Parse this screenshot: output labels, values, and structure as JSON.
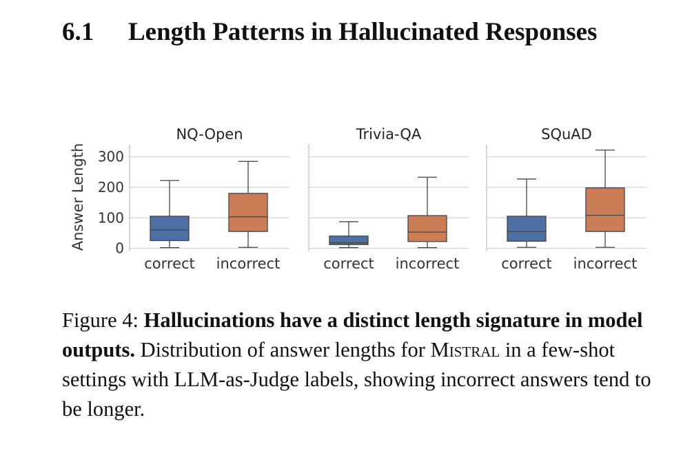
{
  "section": {
    "number": "6.1",
    "title": "Length Patterns in Hallucinated Responses"
  },
  "chart_data": {
    "type": "boxplot",
    "ylabel": "Answer Length",
    "ylim": [
      -10,
      340
    ],
    "yticks": [
      0,
      100,
      200,
      300
    ],
    "grid": true,
    "colors": {
      "correct": "#4c6fa6",
      "incorrect": "#cc7d56"
    },
    "panels": [
      {
        "title": "NQ-Open",
        "boxes": [
          {
            "category": "correct",
            "whisker_low": 2,
            "q1": 25,
            "median": 60,
            "q3": 105,
            "whisker_high": 222
          },
          {
            "category": "incorrect",
            "whisker_low": 3,
            "q1": 55,
            "median": 103,
            "q3": 180,
            "whisker_high": 285
          }
        ]
      },
      {
        "title": "Trivia-QA",
        "boxes": [
          {
            "category": "correct",
            "whisker_low": 2,
            "q1": 12,
            "median": 18,
            "q3": 40,
            "whisker_high": 87
          },
          {
            "category": "incorrect",
            "whisker_low": 2,
            "q1": 22,
            "median": 53,
            "q3": 107,
            "whisker_high": 233
          }
        ]
      },
      {
        "title": "SQuAD",
        "boxes": [
          {
            "category": "correct",
            "whisker_low": 3,
            "q1": 23,
            "median": 55,
            "q3": 105,
            "whisker_high": 227
          },
          {
            "category": "incorrect",
            "whisker_low": 3,
            "q1": 55,
            "median": 108,
            "q3": 198,
            "whisker_high": 322
          }
        ]
      }
    ]
  },
  "caption": {
    "label": "Figure 4:",
    "bold": "Hallucinations have a distinct length signature in model outputs.",
    "text_before_model": "Distribution of answer lengths for",
    "model": "Mistral",
    "text_after_model": "in a few-shot settings with LLM-as-Judge labels, showing incorrect answers tend to be longer."
  }
}
